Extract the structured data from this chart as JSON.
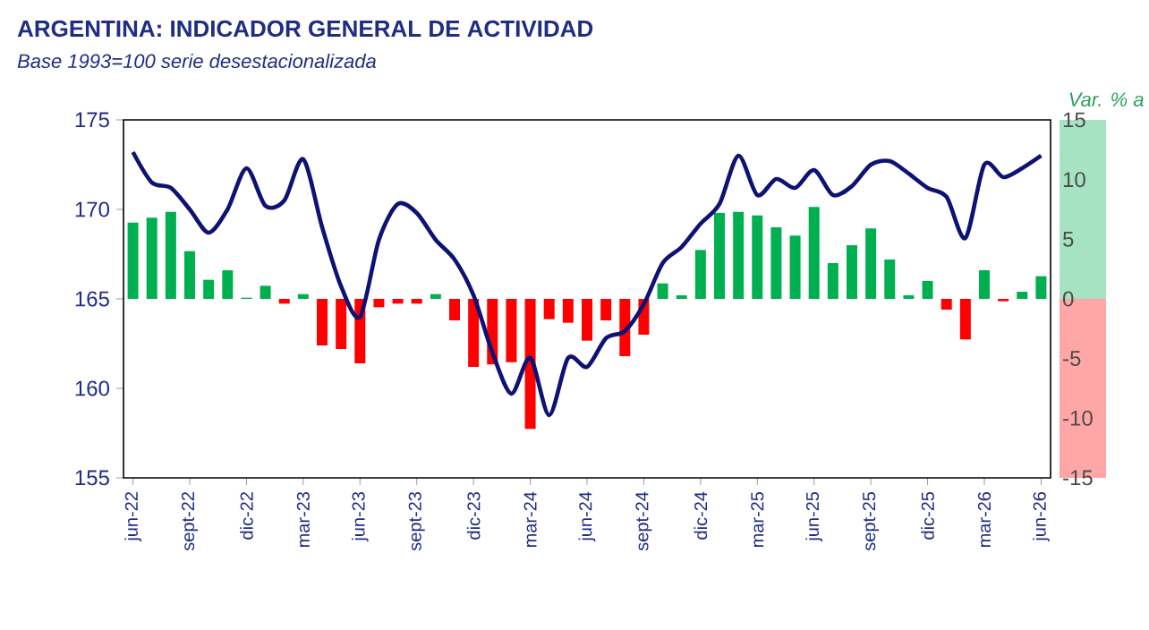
{
  "chart_data": {
    "type": "bar",
    "title": "ARGENTINA: INDICADOR GENERAL DE ACTIVIDAD",
    "subtitle": "Base 1993=100 serie desestacionalizada",
    "y2label": "Var. % a",
    "categories": [
      "jun-22",
      null,
      null,
      "sept-22",
      null,
      null,
      "dic-22",
      null,
      null,
      "mar-23",
      null,
      null,
      "jun-23",
      null,
      null,
      "sept-23",
      null,
      null,
      "dic-23",
      null,
      null,
      "mar-24",
      null,
      null,
      "jun-24",
      null,
      null,
      "sept-24",
      null,
      null,
      "dic-24",
      null,
      null,
      "mar-25",
      null,
      null,
      "jun-25",
      null,
      null,
      "sept-25",
      null,
      null,
      "dic-25",
      null,
      null,
      "mar-26",
      null,
      null,
      "jun-26"
    ],
    "ylim": [
      155,
      175
    ],
    "yticks": [
      155,
      160,
      165,
      170,
      175
    ],
    "y2lim": [
      -15,
      15
    ],
    "y2ticks": [
      -15,
      -10,
      -5,
      0,
      5,
      10,
      15
    ],
    "grid": false,
    "series": [
      {
        "type": "line",
        "color": "#0d1273",
        "values": [
          173.2,
          171.5,
          171.2,
          170.0,
          168.7,
          170.0,
          172.3,
          170.2,
          170.5,
          172.8,
          169.0,
          165.7,
          164.0,
          168.3,
          170.3,
          169.8,
          168.3,
          167.2,
          165.2,
          162.0,
          159.7,
          161.7,
          158.5,
          161.7,
          161.2,
          162.8,
          163.2,
          164.7,
          167.0,
          167.9,
          169.2,
          170.3,
          173.0,
          170.8,
          171.7,
          171.2,
          172.2,
          170.8,
          171.3,
          172.5,
          172.7,
          172.0,
          171.2,
          170.7,
          168.4,
          172.5,
          171.8,
          172.3,
          173.0
        ]
      },
      {
        "axis": "y2",
        "colors": [
          "#00b050",
          "#00b050",
          "#00b050",
          "#00b050",
          "#00b050",
          "#00b050",
          "#00b050",
          "#00b050",
          "#ff0000",
          "#00b050",
          "#ff0000",
          "#ff0000",
          "#ff0000",
          "#ff0000",
          "#ff0000",
          "#ff0000",
          "#00b050",
          "#ff0000",
          "#ff0000",
          "#ff0000",
          "#ff0000",
          "#ff0000",
          "#ff0000",
          "#ff0000",
          "#ff0000",
          "#ff0000",
          "#ff0000",
          "#ff0000",
          "#00b050",
          "#00b050",
          "#00b050",
          "#00b050",
          "#00b050",
          "#00b050",
          "#00b050",
          "#00b050",
          "#00b050",
          "#00b050",
          "#00b050",
          "#00b050",
          "#00b050",
          "#00b050",
          "#00b050",
          "#ff0000",
          "#ff0000",
          "#00b050",
          "#ff0000",
          "#00b050",
          "#00b050"
        ],
        "values": [
          6.4,
          6.8,
          7.3,
          4.0,
          1.6,
          2.4,
          0.1,
          1.1,
          -0.4,
          0.4,
          -3.9,
          -4.2,
          -5.4,
          -0.7,
          -0.4,
          -0.4,
          0.4,
          -1.8,
          -5.7,
          -5.5,
          -5.3,
          -10.9,
          -1.7,
          -2.0,
          -3.5,
          -1.8,
          -4.8,
          -3.0,
          1.3,
          0.3,
          4.1,
          7.2,
          7.3,
          7.0,
          6.0,
          5.3,
          7.7,
          3.0,
          4.5,
          5.9,
          3.3,
          0.3,
          1.5,
          -0.9,
          -3.4,
          2.4,
          -0.2,
          0.6,
          1.9
        ]
      }
    ]
  }
}
